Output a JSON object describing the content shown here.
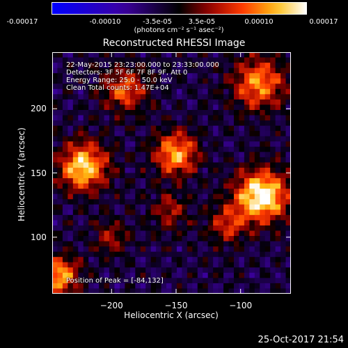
{
  "colorbar": {
    "ticks": [
      "-0.00017",
      "-0.00010",
      "-3.5e-05",
      "3.5e-05",
      "0.00010",
      "0.00017"
    ],
    "unit": "(photons cm⁻² s⁻¹ asec⁻²)",
    "range": [
      -0.00017,
      0.00017
    ]
  },
  "chart_data": {
    "type": "heatmap",
    "title": "Reconstructed RHESSI Image",
    "xlabel": "Heliocentric X (arcsec)",
    "ylabel": "Heliocentric Y (arcsec)",
    "xlim": [
      -246,
      -61
    ],
    "ylim": [
      56,
      244
    ],
    "x_ticks": [
      {
        "value": -200,
        "label": "−200"
      },
      {
        "value": -150,
        "label": "−150"
      },
      {
        "value": -100,
        "label": "−100"
      }
    ],
    "y_ticks": [
      {
        "value": 200,
        "label": "200"
      },
      {
        "value": 150,
        "label": "150"
      },
      {
        "value": 100,
        "label": "100"
      }
    ],
    "annotations": [
      "22-May-2015 23:23:00.000 to 23:33:00.000",
      "Detectors: 3F 5F 6F 7F 8F 9F, Att 0",
      "Energy Range: 25.0 - 50.0 keV",
      "Clean     Total counts: 1.47E+04"
    ],
    "peak_label": "Position of Peak = [-84,132]",
    "peak_position": [
      -84,
      132
    ],
    "colormap": "RHESSI blue-black-red-yellow-white"
  },
  "footer": {
    "date": "25-Oct-2017 21:54"
  }
}
